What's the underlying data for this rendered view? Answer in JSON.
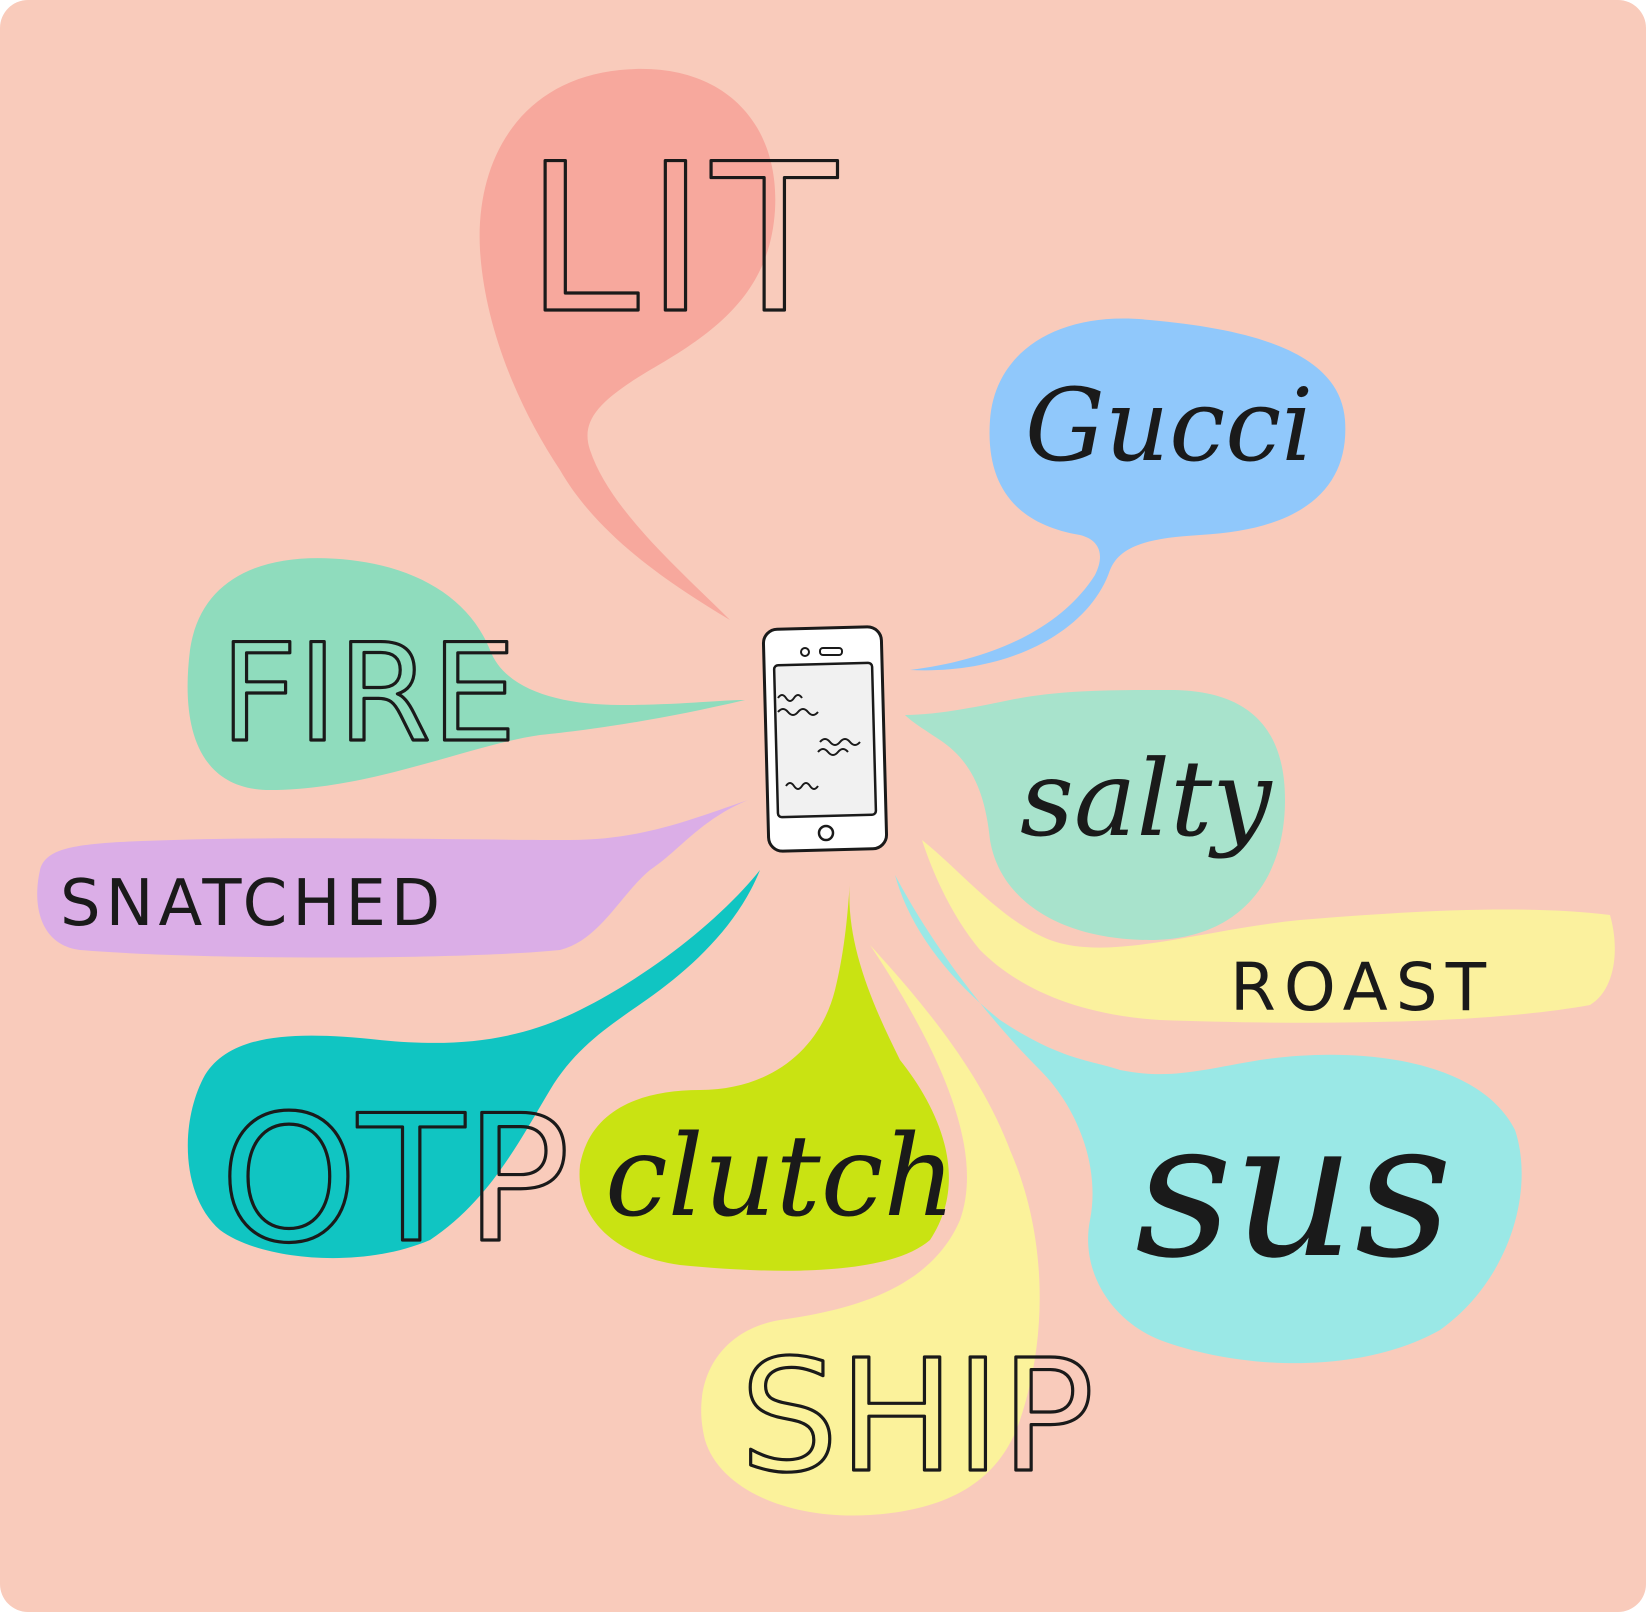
{
  "colors": {
    "background": "#f9cbbb",
    "lit": "#f7a89d",
    "gucci": "#90c8fb",
    "fire": "#8fdcbd",
    "salty": "#a8e3cc",
    "snatched": "#dbaee7",
    "roast": "#fbf19e",
    "otp": "#10c5c2",
    "clutch": "#c9e312",
    "sus": "#9ae8e6",
    "ship": "#fbf29b",
    "ink": "#1a1a1a"
  },
  "bubbles": {
    "lit": "LIT",
    "gucci": "Gucci",
    "fire": "FIRE",
    "salty": "salty",
    "snatched": "SNATCHED",
    "roast": "ROAST",
    "otp": "OTP",
    "clutch": "clutch",
    "sus": "sus",
    "ship": "SHIP"
  },
  "phone": {
    "icon": "smartphone-icon"
  }
}
